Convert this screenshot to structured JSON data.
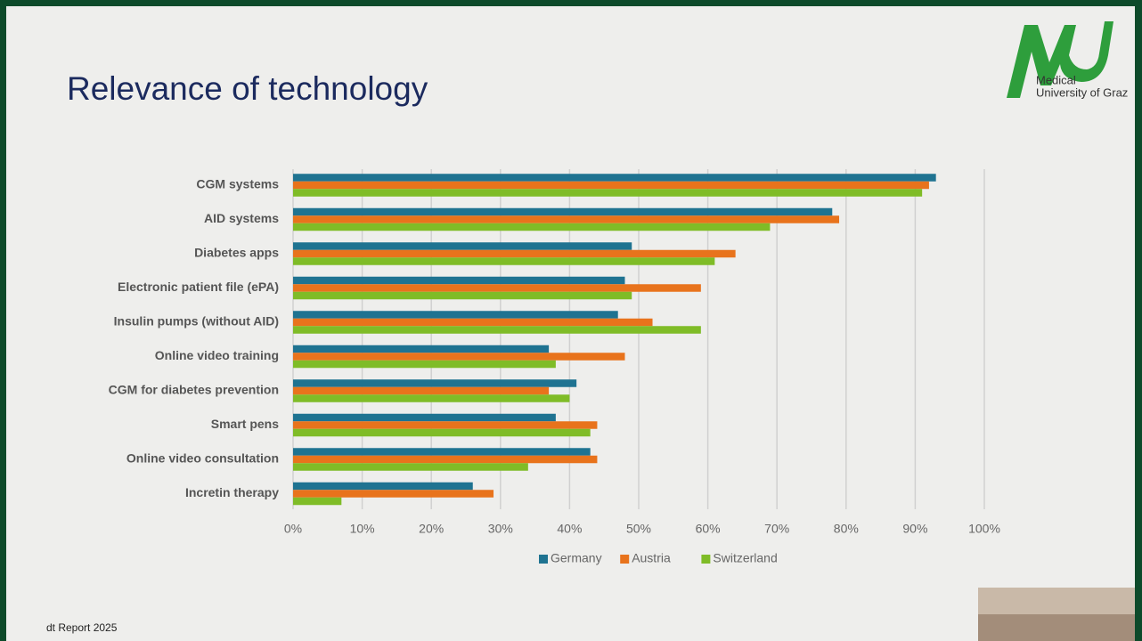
{
  "header": {
    "title": "Relevance of technology",
    "logo": [
      "Medical",
      "University of Graz"
    ]
  },
  "footer": "dt Report 2025",
  "chart_data": {
    "type": "bar",
    "orientation": "horizontal",
    "categories": [
      "CGM systems",
      "AID systems",
      "Diabetes apps",
      "Electronic patient file (ePA)",
      "Insulin pumps (without AID)",
      "Online video training",
      "CGM for diabetes prevention",
      "Smart pens",
      "Online video consultation",
      "Incretin therapy"
    ],
    "series": [
      {
        "name": "Germany",
        "color": "#1f7391",
        "values": [
          93,
          78,
          49,
          48,
          47,
          37,
          41,
          38,
          43,
          26
        ]
      },
      {
        "name": "Austria",
        "color": "#e8731c",
        "values": [
          92,
          79,
          64,
          59,
          52,
          48,
          37,
          44,
          44,
          29
        ]
      },
      {
        "name": "Switzerland",
        "color": "#7fbc27",
        "values": [
          91,
          69,
          61,
          49,
          59,
          38,
          40,
          43,
          34,
          7
        ]
      }
    ],
    "xlim": [
      0,
      100
    ],
    "xticks": [
      {
        "value": 0,
        "label": "0%"
      },
      {
        "value": 10,
        "label": "10%"
      },
      {
        "value": 20,
        "label": "20%"
      },
      {
        "value": 30,
        "label": "30%"
      },
      {
        "value": 40,
        "label": "40%"
      },
      {
        "value": 50,
        "label": "50%"
      },
      {
        "value": 60,
        "label": "60%"
      },
      {
        "value": 70,
        "label": "70%"
      },
      {
        "value": 80,
        "label": "80%"
      },
      {
        "value": 90,
        "label": "90%"
      },
      {
        "value": 100,
        "label": "100%"
      }
    ],
    "grid": true,
    "legend": "bottom"
  }
}
